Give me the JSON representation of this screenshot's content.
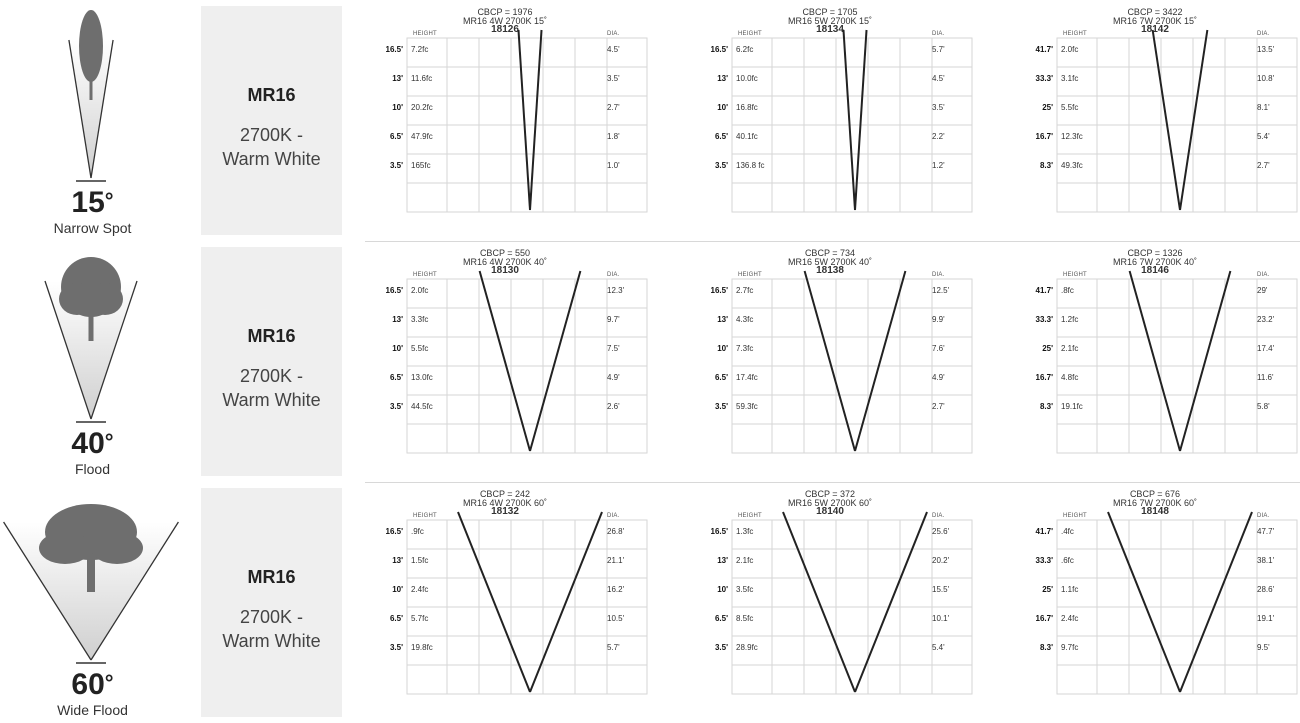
{
  "rows": [
    {
      "beam": {
        "degrees": "15",
        "degree_symbol": "°",
        "name": "Narrow Spot",
        "beam_fraction": 0.24,
        "tree": "narrow-tree"
      },
      "label": {
        "model": "MR16",
        "line1": "2700K -",
        "line2": "Warm White"
      },
      "charts": [
        {
          "cbcp": "CBCP = 1976",
          "model": "MR16 4W 2700K 15˚",
          "sku": "18126",
          "height_header": "HEIGHT",
          "dia_header": "DIA.",
          "heights": [
            "16.5'",
            "13'",
            "10'",
            "6.5'",
            "3.5'"
          ],
          "fc": [
            "7.2fc",
            "11.6fc",
            "20.2fc",
            "47.9fc",
            "165fc"
          ],
          "dia": [
            "4.5'",
            "3.5'",
            "2.7'",
            "1.8'",
            "1.0'"
          ],
          "spread": 0.08
        },
        {
          "cbcp": "CBCP = 1705",
          "model": "MR16 5W 2700K 15˚",
          "sku": "18134",
          "height_header": "HEIGHT",
          "dia_header": "DIA.",
          "heights": [
            "16.5'",
            "13'",
            "10'",
            "6.5'",
            "3.5'"
          ],
          "fc": [
            "6.2fc",
            "10.0fc",
            "16.8fc",
            "40.1fc",
            "136.8 fc"
          ],
          "dia": [
            "5.7'",
            "4.5'",
            "3.5'",
            "2.2'",
            "1.2'"
          ],
          "spread": 0.08
        },
        {
          "cbcp": "CBCP = 3422",
          "model": "MR16 7W 2700K 15˚",
          "sku": "18142",
          "height_header": "HEIGHT",
          "dia_header": "DIA.",
          "heights": [
            "41.7'",
            "33.3'",
            "25'",
            "16.7'",
            "8.3'"
          ],
          "fc": [
            "2.0fc",
            "3.1fc",
            "5.5fc",
            "12.3fc",
            "49.3fc"
          ],
          "dia": [
            "13.5'",
            "10.8'",
            "8.1'",
            "5.4'",
            "2.7'"
          ],
          "spread": 0.19
        }
      ]
    },
    {
      "beam": {
        "degrees": "40",
        "degree_symbol": "°",
        "name": "Flood",
        "beam_fraction": 0.5,
        "tree": "medium-tree"
      },
      "label": {
        "model": "MR16",
        "line1": "2700K -",
        "line2": "Warm White"
      },
      "charts": [
        {
          "cbcp": "CBCP = 550",
          "model": "MR16 4W 2700K 40˚",
          "sku": "18130",
          "height_header": "HEIGHT",
          "dia_header": "DIA.",
          "heights": [
            "16.5'",
            "13'",
            "10'",
            "6.5'",
            "3.5'"
          ],
          "fc": [
            "2.0fc",
            "3.3fc",
            "5.5fc",
            "13.0fc",
            "44.5fc"
          ],
          "dia": [
            "12.3'",
            "9.7'",
            "7.5'",
            "4.9'",
            "2.6'"
          ],
          "spread": 0.35
        },
        {
          "cbcp": "CBCP = 734",
          "model": "MR16 5W 2700K 40˚",
          "sku": "18138",
          "height_header": "HEIGHT",
          "dia_header": "DIA.",
          "heights": [
            "16.5'",
            "13'",
            "10'",
            "6.5'",
            "3.5'"
          ],
          "fc": [
            "2.7fc",
            "4.3fc",
            "7.3fc",
            "17.4fc",
            "59.3fc"
          ],
          "dia": [
            "12.5'",
            "9.9'",
            "7.6'",
            "4.9'",
            "2.7'"
          ],
          "spread": 0.35
        },
        {
          "cbcp": "CBCP = 1326",
          "model": "MR16 7W 2700K 40˚",
          "sku": "18146",
          "height_header": "HEIGHT",
          "dia_header": "DIA.",
          "heights": [
            "41.7'",
            "33.3'",
            "25'",
            "16.7'",
            "8.3'"
          ],
          "fc": [
            ".8fc",
            "1.2fc",
            "2.1fc",
            "4.8fc",
            "19.1fc"
          ],
          "dia": [
            "29'",
            "23.2'",
            "17.4'",
            "11.6'",
            "5.8'"
          ],
          "spread": 0.35
        }
      ]
    },
    {
      "beam": {
        "degrees": "60",
        "degree_symbol": "°",
        "name": "Wide Flood",
        "beam_fraction": 0.95,
        "tree": "wide-tree"
      },
      "label": {
        "model": "MR16",
        "line1": "2700K -",
        "line2": "Warm White"
      },
      "charts": [
        {
          "cbcp": "CBCP = 242",
          "model": "MR16 4W 2700K 60˚",
          "sku": "18132",
          "height_header": "HEIGHT",
          "dia_header": "DIA.",
          "heights": [
            "16.5'",
            "13'",
            "10'",
            "6.5'",
            "3.5'"
          ],
          "fc": [
            ".9fc",
            "1.5fc",
            "2.4fc",
            "5.7fc",
            "19.8fc"
          ],
          "dia": [
            "26.8'",
            "21.1'",
            "16.2'",
            "10.5'",
            "5.7'"
          ],
          "spread": 0.5
        },
        {
          "cbcp": "CBCP = 372",
          "model": "MR16 5W 2700K 60˚",
          "sku": "18140",
          "height_header": "HEIGHT",
          "dia_header": "DIA.",
          "heights": [
            "16.5'",
            "13'",
            "10'",
            "6.5'",
            "3.5'"
          ],
          "fc": [
            "1.3fc",
            "2.1fc",
            "3.5fc",
            "8.5fc",
            "28.9fc"
          ],
          "dia": [
            "25.6'",
            "20.2'",
            "15.5'",
            "10.1'",
            "5.4'"
          ],
          "spread": 0.5
        },
        {
          "cbcp": "CBCP = 676",
          "model": "MR16 7W 2700K 60˚",
          "sku": "18148",
          "height_header": "HEIGHT",
          "dia_header": "DIA.",
          "heights": [
            "41.7'",
            "33.3'",
            "25'",
            "16.7'",
            "8.3'"
          ],
          "fc": [
            ".4fc",
            ".6fc",
            "1.1fc",
            "2.4fc",
            "9.7fc"
          ],
          "dia": [
            "47.7'",
            "38.1'",
            "28.6'",
            "19.1'",
            "9.5'"
          ],
          "spread": 0.5
        }
      ]
    }
  ],
  "colors": {
    "line": "#d6d6d6",
    "beam_line": "#222222",
    "panel": "#efefef",
    "tree": "#6e6e6e"
  }
}
